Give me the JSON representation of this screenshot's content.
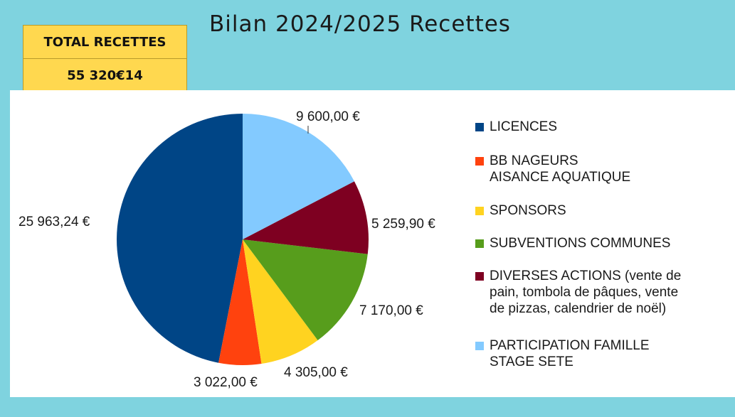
{
  "header": {
    "title": "Bilan 2024/2025 Recettes"
  },
  "total_box": {
    "label": "TOTAL RECETTES",
    "value": "55 320€14"
  },
  "chart_data": {
    "type": "pie",
    "title": "Bilan 2024/2025 Recettes",
    "legend_position": "right",
    "slices": [
      {
        "name": "LICENCES",
        "value": 25963.24,
        "label": "25 963,24 €",
        "color": "#004586"
      },
      {
        "name": "BB NAGEURS\nAISANCE AQUATIQUE",
        "value": 3022.0,
        "label": "3 022,00 €",
        "color": "#ff420e"
      },
      {
        "name": "SPONSORS",
        "value": 4305.0,
        "label": "4 305,00 €",
        "color": "#ffd320"
      },
      {
        "name": "SUBVENTIONS COMMUNES",
        "value": 7170.0,
        "label": "7 170,00 €",
        "color": "#579d1c"
      },
      {
        "name": "DIVERSES ACTIONS (vente de\npain, tombola de pâques, vente\nde pizzas, calendrier de noël)",
        "value": 5259.9,
        "label": "5 259,90 €",
        "color": "#7e0021"
      },
      {
        "name": "PARTICIPATION FAMILLE\nSTAGE SETE",
        "value": 9600.0,
        "label": "9 600,00 €",
        "color": "#83caff"
      }
    ]
  }
}
